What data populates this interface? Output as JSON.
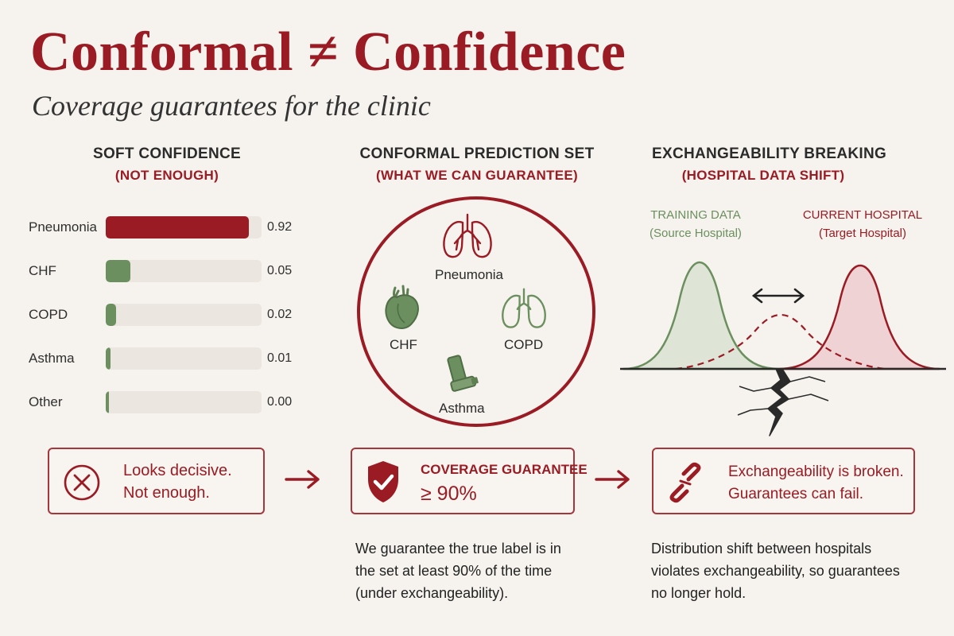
{
  "header": {
    "title": "Conformal ≠ Confidence",
    "subtitle": "Coverage guarantees for the clinic"
  },
  "columns": [
    {
      "title": "SOFT CONFIDENCE",
      "subtitle": "(NOT ENOUGH)"
    },
    {
      "title": "CONFORMAL PREDICTION SET",
      "subtitle": "(WHAT WE CAN GUARANTEE)"
    },
    {
      "title": "EXCHANGEABILITY BREAKING",
      "subtitle": "(HOSPITAL DATA SHIFT)"
    }
  ],
  "colors": {
    "brand_red": "#9a1b24",
    "green": "#6b8f5e",
    "track": "#ebe7e0",
    "background": "#f6f3ee"
  },
  "chart_data": {
    "type": "bar",
    "orientation": "horizontal",
    "categories": [
      "Pneumonia",
      "CHF",
      "COPD",
      "Asthma",
      "Other"
    ],
    "values": [
      0.92,
      0.05,
      0.02,
      0.01,
      0.0
    ],
    "value_labels": [
      "0.92",
      "0.05",
      "0.02",
      "0.01",
      "0.00"
    ],
    "xlim": [
      0,
      1
    ],
    "bar_colors": [
      "#9a1b24",
      "#6b8f5e",
      "#6b8f5e",
      "#6b8f5e",
      "#6b8f5e"
    ]
  },
  "prediction_set": {
    "items": [
      {
        "label": "Pneumonia",
        "icon": "lungs-icon",
        "color": "#9a1b24"
      },
      {
        "label": "CHF",
        "icon": "heart-icon",
        "color": "#6b8f5e"
      },
      {
        "label": "COPD",
        "icon": "lungs-icon",
        "color": "#6b8f5e"
      },
      {
        "label": "Asthma",
        "icon": "inhaler-icon",
        "color": "#6b8f5e"
      }
    ]
  },
  "shift": {
    "training_title": "TRAINING DATA",
    "training_sub": "(Source Hospital)",
    "current_title": "CURRENT HOSPITAL",
    "current_sub": "(Target Hospital)",
    "icons": [
      "double-arrow-icon",
      "crack-icon"
    ]
  },
  "boxes": [
    {
      "icon": "x-circle-icon",
      "line1": "Looks decisive.",
      "line2": "Not enough."
    },
    {
      "icon": "shield-check-icon",
      "line1": "COVERAGE GUARANTEE",
      "line2": "≥ 90%"
    },
    {
      "icon": "broken-link-icon",
      "line1": "Exchangeability is broken.",
      "line2": "Guarantees can fail."
    }
  ],
  "notes": {
    "middle": [
      "We guarantee the true label is in",
      "the set at least 90% of the time",
      "(under exchangeability)."
    ],
    "right": [
      "Distribution shift between hospitals",
      "violates exchangeability, so guarantees",
      "no longer hold."
    ]
  }
}
